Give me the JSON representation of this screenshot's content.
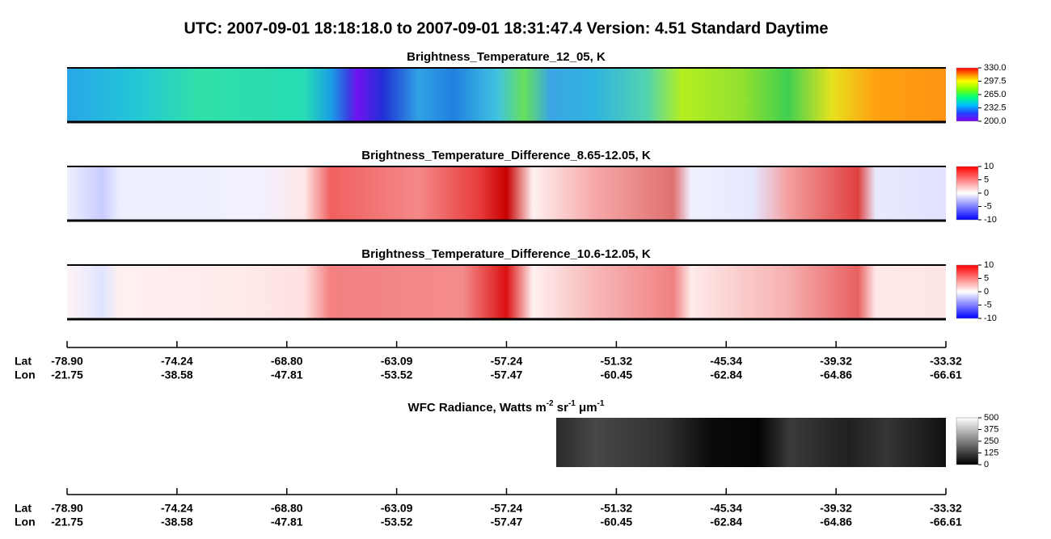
{
  "header": {
    "title": "UTC:  2007-09-01   18:18:18.0  to  2007-09-01   18:31:47.4    Version: 4.51  Standard Daytime"
  },
  "panels": [
    {
      "title": "Brightness_Temperature_12_05, K",
      "colorbar": [
        "330.0",
        "297.5",
        "265.0",
        "232.5",
        "200.0"
      ]
    },
    {
      "title": "Brightness_Temperature_Difference_8.65-12.05, K",
      "colorbar": [
        "10",
        "5",
        "0",
        "-5",
        "-10"
      ]
    },
    {
      "title": "Brightness_Temperature_Difference_10.6-12.05, K",
      "colorbar": [
        "10",
        "5",
        "0",
        "-5",
        "-10"
      ]
    }
  ],
  "axes": [
    {
      "lat_label": "Lat",
      "lon_label": "Lon",
      "lat": [
        "-78.90",
        "-74.24",
        "-68.80",
        "-63.09",
        "-57.24",
        "-51.32",
        "-45.34",
        "-39.32",
        "-33.32"
      ],
      "lon": [
        "-21.75",
        "-38.58",
        "-47.81",
        "-53.52",
        "-57.47",
        "-60.45",
        "-62.84",
        "-64.86",
        "-66.61"
      ]
    },
    {
      "lat_label": "Lat",
      "lon_label": "Lon",
      "lat": [
        "-78.90",
        "-74.24",
        "-68.80",
        "-63.09",
        "-57.24",
        "-51.32",
        "-45.34",
        "-39.32",
        "-33.32"
      ],
      "lon": [
        "-21.75",
        "-38.58",
        "-47.81",
        "-53.52",
        "-57.47",
        "-60.45",
        "-62.84",
        "-64.86",
        "-66.61"
      ]
    }
  ],
  "wfc": {
    "title_parts": [
      "WFC Radiance, Watts m",
      "-2",
      " sr",
      "-1",
      " μm",
      "-1"
    ],
    "colorbar": [
      "500",
      "375",
      "250",
      "125",
      "0"
    ]
  }
}
